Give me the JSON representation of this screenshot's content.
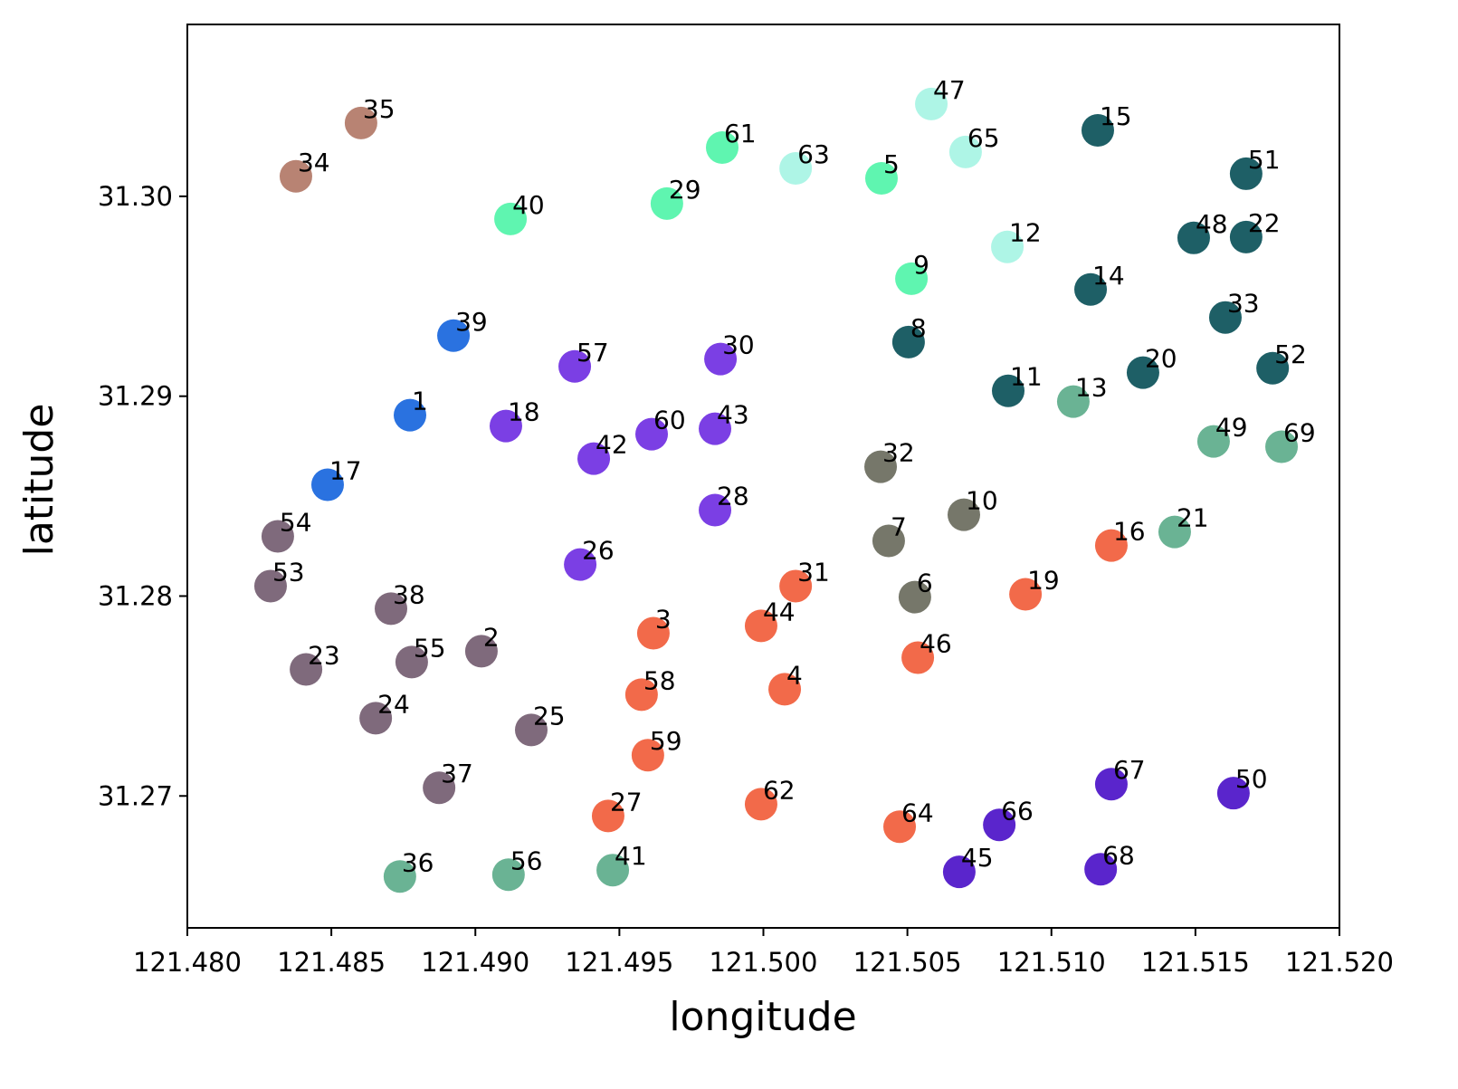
{
  "chart_data": {
    "type": "scatter",
    "x_label": "longitude",
    "y_label": "latitude",
    "xlim": [
      121.48,
      121.52
    ],
    "ylim": [
      31.2634,
      31.3086
    ],
    "xticks": [
      {
        "value": 121.48,
        "label": "121.480"
      },
      {
        "value": 121.485,
        "label": "121.485"
      },
      {
        "value": 121.49,
        "label": "121.490"
      },
      {
        "value": 121.495,
        "label": "121.495"
      },
      {
        "value": 121.5,
        "label": "121.500"
      },
      {
        "value": 121.505,
        "label": "121.505"
      },
      {
        "value": 121.51,
        "label": "121.510"
      },
      {
        "value": 121.515,
        "label": "121.515"
      },
      {
        "value": 121.52,
        "label": "121.520"
      }
    ],
    "yticks": [
      31.27,
      31.28,
      31.29,
      {
        "value": 31.3,
        "label": "31.30"
      }
    ],
    "series": [
      {
        "color": "#b88373",
        "labels": [
          35,
          34
        ],
        "x": [
          121.48603,
          121.48377
        ],
        "y": [
          31.30367,
          31.301
        ]
      },
      {
        "color": "#5ff5b0",
        "labels": [
          61,
          5,
          29,
          40,
          9
        ],
        "x": [
          121.49857,
          121.5041,
          121.49665,
          121.49122,
          121.50514
        ],
        "y": [
          31.30244,
          31.3009,
          31.29964,
          31.29887,
          31.29588
        ]
      },
      {
        "color": "#aef5e6",
        "labels": [
          63,
          47,
          65,
          12
        ],
        "x": [
          121.50112,
          121.50583,
          121.50702,
          121.50847
        ],
        "y": [
          31.3014,
          31.30462,
          31.30222,
          31.29747
        ]
      },
      {
        "color": "#1e5f66",
        "labels": [
          15,
          51,
          48,
          22,
          14,
          33,
          8,
          52,
          20,
          11
        ],
        "x": [
          121.51161,
          121.51676,
          121.51494,
          121.51676,
          121.51136,
          121.51604,
          121.50504,
          121.51768,
          121.51318,
          121.5085
        ],
        "y": [
          31.3033,
          31.30113,
          31.29792,
          31.29796,
          31.29534,
          31.29394,
          31.29271,
          31.2914,
          31.29118,
          31.29027
        ]
      },
      {
        "color": "#2a72e0",
        "labels": [
          39,
          1,
          17
        ],
        "x": [
          121.48924,
          121.48773,
          121.48487
        ],
        "y": [
          31.29303,
          31.28905,
          31.28557
        ]
      },
      {
        "color": "#7b3fe4",
        "labels": [
          57,
          30,
          18,
          60,
          43,
          42,
          28,
          26
        ],
        "x": [
          121.49345,
          121.49851,
          121.49106,
          121.49612,
          121.49832,
          121.49411,
          121.49832,
          121.49364
        ],
        "y": [
          31.29149,
          31.29186,
          31.28851,
          31.2881,
          31.28837,
          31.28688,
          31.2843,
          31.28158
        ]
      },
      {
        "color": "#6ab394",
        "labels": [
          13,
          49,
          69,
          21,
          36,
          56,
          41
        ],
        "x": [
          121.51076,
          121.51563,
          121.51799,
          121.51428,
          121.48738,
          121.49115,
          121.49477
        ],
        "y": [
          31.28973,
          31.28774,
          31.28747,
          31.28321,
          31.26597,
          31.26606,
          31.26629
        ]
      },
      {
        "color": "#76776a",
        "labels": [
          32,
          10,
          7,
          6
        ],
        "x": [
          121.50407,
          121.50696,
          121.50435,
          121.50526
        ],
        "y": [
          31.28647,
          31.28407,
          31.28276,
          31.27995
        ]
      },
      {
        "color": "#f26a4a",
        "labels": [
          16,
          31,
          19,
          44,
          3,
          46,
          4,
          58,
          59,
          62,
          27,
          64
        ],
        "x": [
          121.51208,
          121.50112,
          121.5091,
          121.49992,
          121.49618,
          121.50536,
          121.50074,
          121.49577,
          121.49599,
          121.49992,
          121.49461,
          121.50473
        ],
        "y": [
          31.28253,
          31.2805,
          31.28009,
          31.27851,
          31.27814,
          31.27692,
          31.27534,
          31.27507,
          31.27204,
          31.26959,
          31.269,
          31.26846
        ]
      },
      {
        "color": "#7f6a7c",
        "labels": [
          54,
          53,
          38,
          2,
          55,
          23,
          24,
          25,
          37
        ],
        "x": [
          121.48314,
          121.48289,
          121.48707,
          121.49021,
          121.48779,
          121.48412,
          121.48654,
          121.49194,
          121.48874
        ],
        "y": [
          31.28299,
          31.2805,
          31.27937,
          31.27724,
          31.2767,
          31.27633,
          31.27389,
          31.2733,
          31.27041
        ]
      },
      {
        "color": "#5a25cc",
        "labels": [
          67,
          50,
          66,
          45,
          68
        ],
        "x": [
          121.51208,
          121.51632,
          121.50819,
          121.5068,
          121.51171
        ],
        "y": [
          31.27059,
          31.27014,
          31.26855,
          31.2662,
          31.26633
        ]
      }
    ]
  }
}
